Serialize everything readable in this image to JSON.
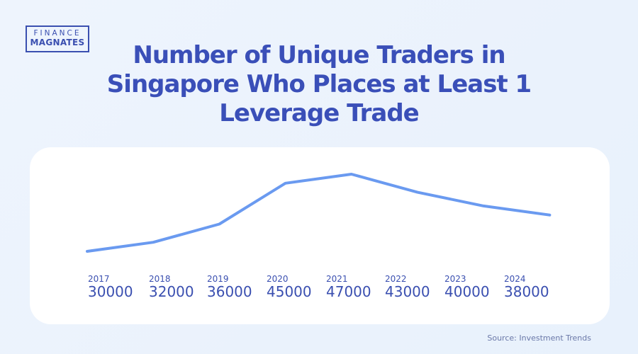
{
  "logo": {
    "line1": "FINANCE",
    "line2": "MAGNATES"
  },
  "source": "Source: Investment Trends",
  "chart_data": {
    "type": "line",
    "title": "Number of Unique Traders in Singapore Who Places at Least 1 Leverage Trade",
    "categories": [
      "2017",
      "2018",
      "2019",
      "2020",
      "2021",
      "2022",
      "2023",
      "2024"
    ],
    "values": [
      30000,
      32000,
      36000,
      45000,
      47000,
      43000,
      40000,
      38000
    ],
    "line_color": "#6a9af0",
    "grid": false
  }
}
